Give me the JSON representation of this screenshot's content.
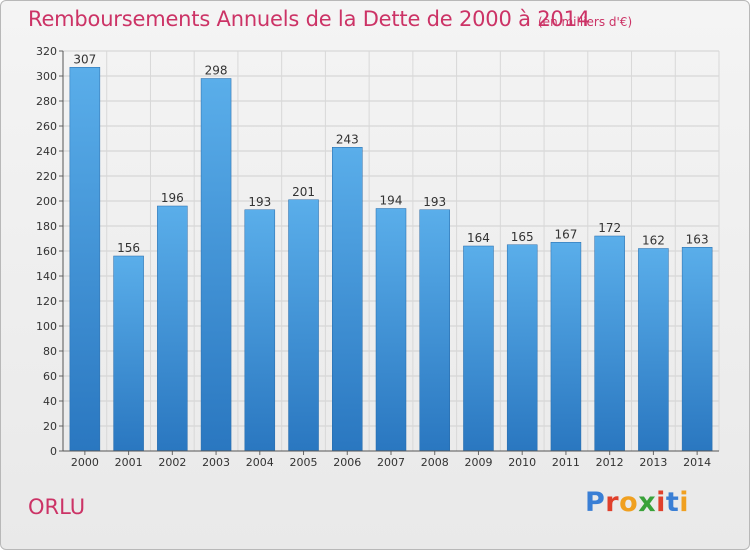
{
  "header": {
    "title": "Remboursements Annuels de la Dette de 2000 à 2014",
    "subtitle": "(en milliers d'€)"
  },
  "footer": {
    "location": "ORLU",
    "logo_letters": [
      "P",
      "r",
      "o",
      "x",
      "i",
      "t",
      "i"
    ],
    "logo_colors": [
      "#3a7fd5",
      "#e0402c",
      "#f0a020",
      "#3aa23a",
      "#e0402c",
      "#3a7fd5",
      "#f0a020"
    ]
  },
  "chart_data": {
    "type": "bar",
    "title": "Remboursements Annuels de la Dette de 2000 à 2014",
    "subtitle": "(en milliers d'€)",
    "xlabel": "",
    "ylabel": "",
    "categories": [
      "2000",
      "2001",
      "2002",
      "2003",
      "2004",
      "2005",
      "2006",
      "2007",
      "2008",
      "2009",
      "2010",
      "2011",
      "2012",
      "2013",
      "2014"
    ],
    "values": [
      307,
      156,
      196,
      298,
      193,
      201,
      243,
      194,
      193,
      164,
      165,
      167,
      172,
      162,
      163
    ],
    "ylim": [
      0,
      320
    ],
    "yticks": [
      0,
      20,
      40,
      60,
      80,
      100,
      120,
      140,
      160,
      180,
      200,
      220,
      240,
      260,
      280,
      300,
      320
    ],
    "grid": true,
    "bar_color": "#4a9de0",
    "bar_color_dark": "#2b78c2"
  }
}
